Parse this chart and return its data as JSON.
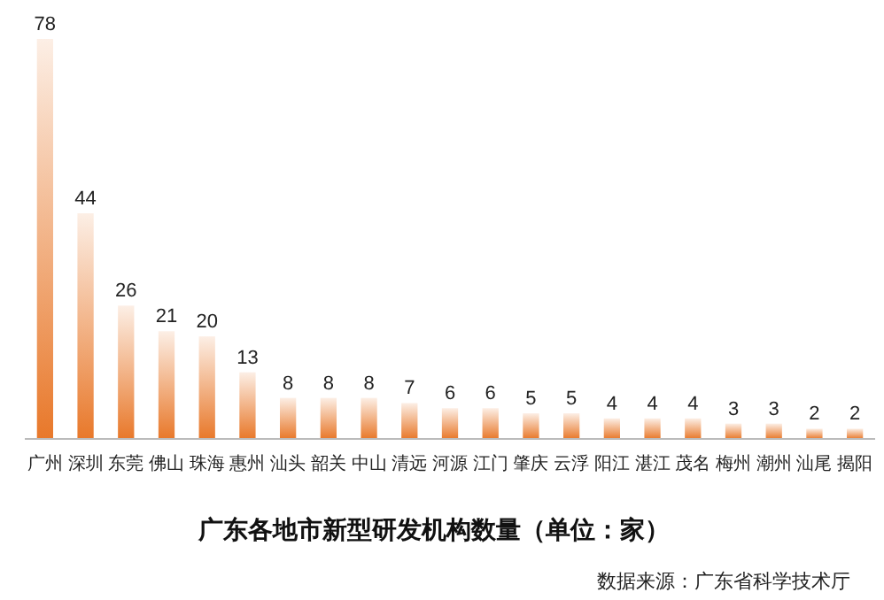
{
  "chart_data": {
    "type": "bar",
    "title": "广东各地市新型研发机构数量（单位：家）",
    "categories": [
      "广州",
      "深圳",
      "东莞",
      "佛山",
      "珠海",
      "惠州",
      "汕头",
      "韶关",
      "中山",
      "清远",
      "河源",
      "江门",
      "肇庆",
      "云浮",
      "阳江",
      "湛江",
      "茂名",
      "梅州",
      "潮州",
      "汕尾",
      "揭阳"
    ],
    "values": [
      78,
      44,
      26,
      21,
      20,
      13,
      8,
      8,
      8,
      7,
      6,
      6,
      5,
      5,
      4,
      4,
      4,
      3,
      3,
      2,
      2
    ],
    "color": "#e8782a",
    "data_labels": true,
    "annotations": [
      "数据来源：广东省科学技术厅"
    ]
  }
}
